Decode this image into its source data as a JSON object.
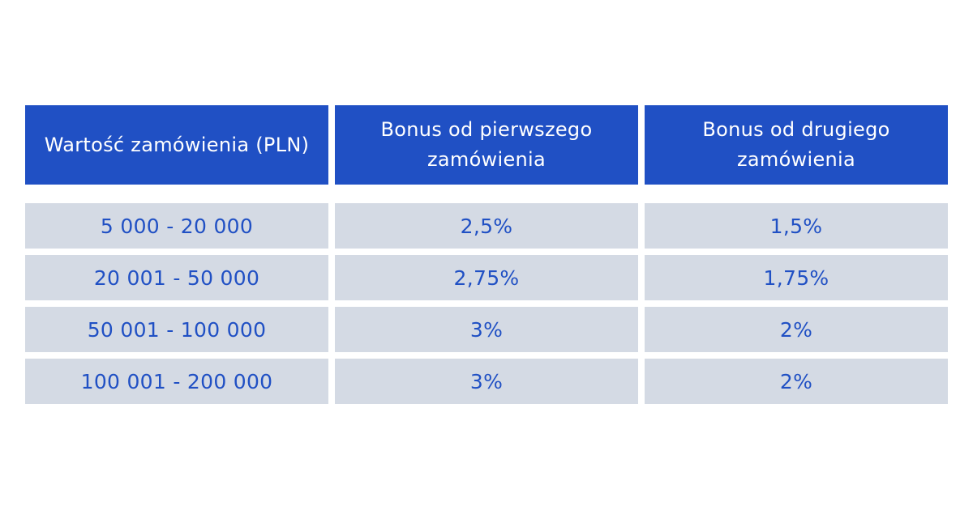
{
  "table": {
    "headers": [
      "Wartość zamówienia (PLN)",
      "Bonus od pierwszego zamówienia",
      "Bonus od drugiego zamówienia"
    ],
    "rows": [
      [
        "5 000 - 20 000",
        "2,5%",
        "1,5%"
      ],
      [
        "20 001 - 50 000",
        "2,75%",
        "1,75%"
      ],
      [
        "50 001 - 100 000",
        "3%",
        "2%"
      ],
      [
        "100 001 - 200 000",
        "3%",
        "2%"
      ]
    ]
  },
  "colors": {
    "header_background": "#2050C4",
    "header_text": "#FFFFFF",
    "cell_background": "#D4DAE4",
    "cell_text": "#2050C4"
  }
}
